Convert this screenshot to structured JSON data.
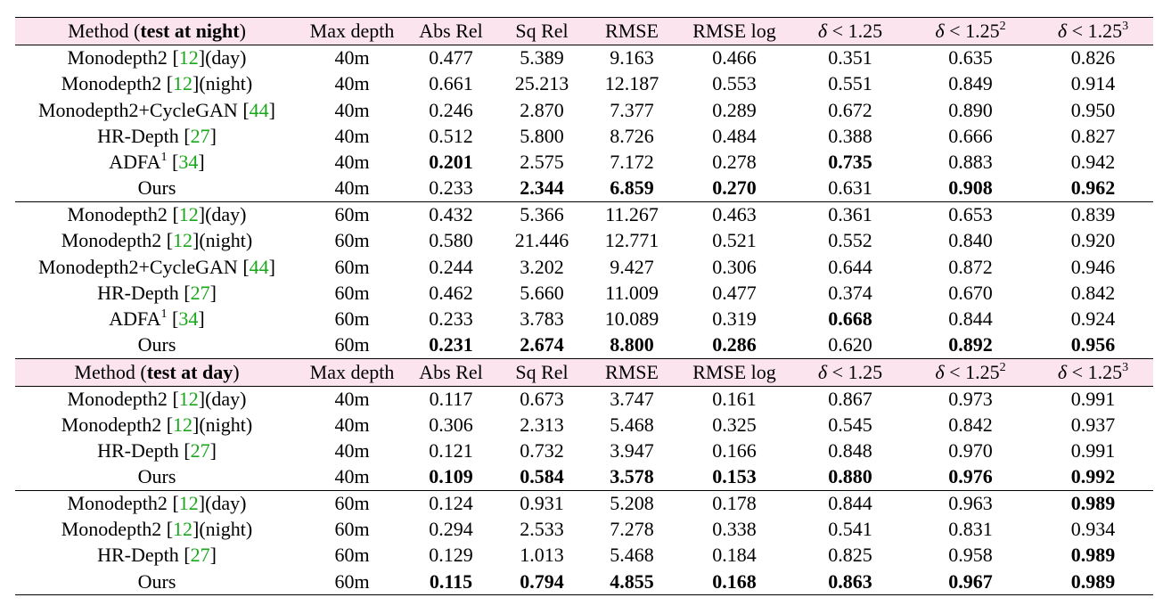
{
  "header": {
    "method_prefix": "Method (",
    "night_label": "test at night",
    "day_label": "test at day",
    "method_suffix": ")",
    "max_depth": "Max depth",
    "abs_rel": "Abs Rel",
    "sq_rel": "Sq Rel",
    "rmse": "RMSE",
    "rmse_log": "RMSE log",
    "delta_symbol": "δ",
    "delta_lt": " < ",
    "delta_base": "1.25",
    "delta_exp2": "2",
    "delta_exp3": "3"
  },
  "sections": [
    {
      "header": "night",
      "rows": [
        {
          "name": "Monodepth2 ",
          "cite": "12",
          "post": "(day)",
          "sup": "",
          "depth": "40m",
          "vals": [
            "0.477",
            "5.389",
            "9.163",
            "0.466",
            "0.351",
            "0.635",
            "0.826"
          ],
          "bold": []
        },
        {
          "name": "Monodepth2 ",
          "cite": "12",
          "post": "(night)",
          "sup": "",
          "depth": "40m",
          "vals": [
            "0.661",
            "25.213",
            "12.187",
            "0.553",
            "0.551",
            "0.849",
            "0.914"
          ],
          "bold": []
        },
        {
          "name": "Monodepth2+CycleGAN ",
          "cite": "44",
          "post": "",
          "sup": "",
          "depth": "40m",
          "vals": [
            "0.246",
            "2.870",
            "7.377",
            "0.289",
            "0.672",
            "0.890",
            "0.950"
          ],
          "bold": []
        },
        {
          "name": "HR-Depth ",
          "cite": "27",
          "post": "",
          "sup": "",
          "depth": "40m",
          "vals": [
            "0.512",
            "5.800",
            "8.726",
            "0.484",
            "0.388",
            "0.666",
            "0.827"
          ],
          "bold": []
        },
        {
          "name": "ADFA",
          "cite": "34",
          "post": "",
          "sup": "1",
          "depth": "40m",
          "vals": [
            "0.201",
            "2.575",
            "7.172",
            "0.278",
            "0.735",
            "0.883",
            "0.942"
          ],
          "bold": [
            0,
            4
          ]
        },
        {
          "name": "Ours",
          "cite": "",
          "post": "",
          "sup": "",
          "depth": "40m",
          "vals": [
            "0.233",
            "2.344",
            "6.859",
            "0.270",
            "0.631",
            "0.908",
            "0.962"
          ],
          "bold": [
            1,
            2,
            3,
            5,
            6
          ]
        }
      ]
    },
    {
      "header": "",
      "rows": [
        {
          "name": "Monodepth2 ",
          "cite": "12",
          "post": "(day)",
          "sup": "",
          "depth": "60m",
          "vals": [
            "0.432",
            "5.366",
            "11.267",
            "0.463",
            "0.361",
            "0.653",
            "0.839"
          ],
          "bold": []
        },
        {
          "name": "Monodepth2 ",
          "cite": "12",
          "post": "(night)",
          "sup": "",
          "depth": "60m",
          "vals": [
            "0.580",
            "21.446",
            "12.771",
            "0.521",
            "0.552",
            "0.840",
            "0.920"
          ],
          "bold": []
        },
        {
          "name": "Monodepth2+CycleGAN ",
          "cite": "44",
          "post": "",
          "sup": "",
          "depth": "60m",
          "vals": [
            "0.244",
            "3.202",
            "9.427",
            "0.306",
            "0.644",
            "0.872",
            "0.946"
          ],
          "bold": []
        },
        {
          "name": "HR-Depth ",
          "cite": "27",
          "post": "",
          "sup": "",
          "depth": "60m",
          "vals": [
            "0.462",
            "5.660",
            "11.009",
            "0.477",
            "0.374",
            "0.670",
            "0.842"
          ],
          "bold": []
        },
        {
          "name": "ADFA",
          "cite": "34",
          "post": "",
          "sup": "1",
          "depth": "60m",
          "vals": [
            "0.233",
            "3.783",
            "10.089",
            "0.319",
            "0.668",
            "0.844",
            "0.924"
          ],
          "bold": [
            4
          ]
        },
        {
          "name": "Ours",
          "cite": "",
          "post": "",
          "sup": "",
          "depth": "60m",
          "vals": [
            "0.231",
            "2.674",
            "8.800",
            "0.286",
            "0.620",
            "0.892",
            "0.956"
          ],
          "bold": [
            0,
            1,
            2,
            3,
            5,
            6
          ]
        }
      ]
    },
    {
      "header": "day",
      "rows": [
        {
          "name": "Monodepth2 ",
          "cite": "12",
          "post": "(day)",
          "sup": "",
          "depth": "40m",
          "vals": [
            "0.117",
            "0.673",
            "3.747",
            "0.161",
            "0.867",
            "0.973",
            "0.991"
          ],
          "bold": []
        },
        {
          "name": "Monodepth2 ",
          "cite": "12",
          "post": "(night)",
          "sup": "",
          "depth": "40m",
          "vals": [
            "0.306",
            "2.313",
            "5.468",
            "0.325",
            "0.545",
            "0.842",
            "0.937"
          ],
          "bold": []
        },
        {
          "name": "HR-Depth ",
          "cite": "27",
          "post": "",
          "sup": "",
          "depth": "40m",
          "vals": [
            "0.121",
            "0.732",
            "3.947",
            "0.166",
            "0.848",
            "0.970",
            "0.991"
          ],
          "bold": []
        },
        {
          "name": "Ours",
          "cite": "",
          "post": "",
          "sup": "",
          "depth": "40m",
          "vals": [
            "0.109",
            "0.584",
            "3.578",
            "0.153",
            "0.880",
            "0.976",
            "0.992"
          ],
          "bold": [
            0,
            1,
            2,
            3,
            4,
            5,
            6
          ]
        }
      ]
    },
    {
      "header": "",
      "rows": [
        {
          "name": "Monodepth2 ",
          "cite": "12",
          "post": "(day)",
          "sup": "",
          "depth": "60m",
          "vals": [
            "0.124",
            "0.931",
            "5.208",
            "0.178",
            "0.844",
            "0.963",
            "0.989"
          ],
          "bold": [
            6
          ]
        },
        {
          "name": "Monodepth2 ",
          "cite": "12",
          "post": "(night)",
          "sup": "",
          "depth": "60m",
          "vals": [
            "0.294",
            "2.533",
            "7.278",
            "0.338",
            "0.541",
            "0.831",
            "0.934"
          ],
          "bold": []
        },
        {
          "name": "HR-Depth ",
          "cite": "27",
          "post": "",
          "sup": "",
          "depth": "60m",
          "vals": [
            "0.129",
            "1.013",
            "5.468",
            "0.184",
            "0.825",
            "0.958",
            "0.989"
          ],
          "bold": [
            6
          ]
        },
        {
          "name": "Ours",
          "cite": "",
          "post": "",
          "sup": "",
          "depth": "60m",
          "vals": [
            "0.115",
            "0.794",
            "4.855",
            "0.168",
            "0.863",
            "0.967",
            "0.989"
          ],
          "bold": [
            0,
            1,
            2,
            3,
            4,
            5,
            6
          ]
        }
      ]
    }
  ]
}
